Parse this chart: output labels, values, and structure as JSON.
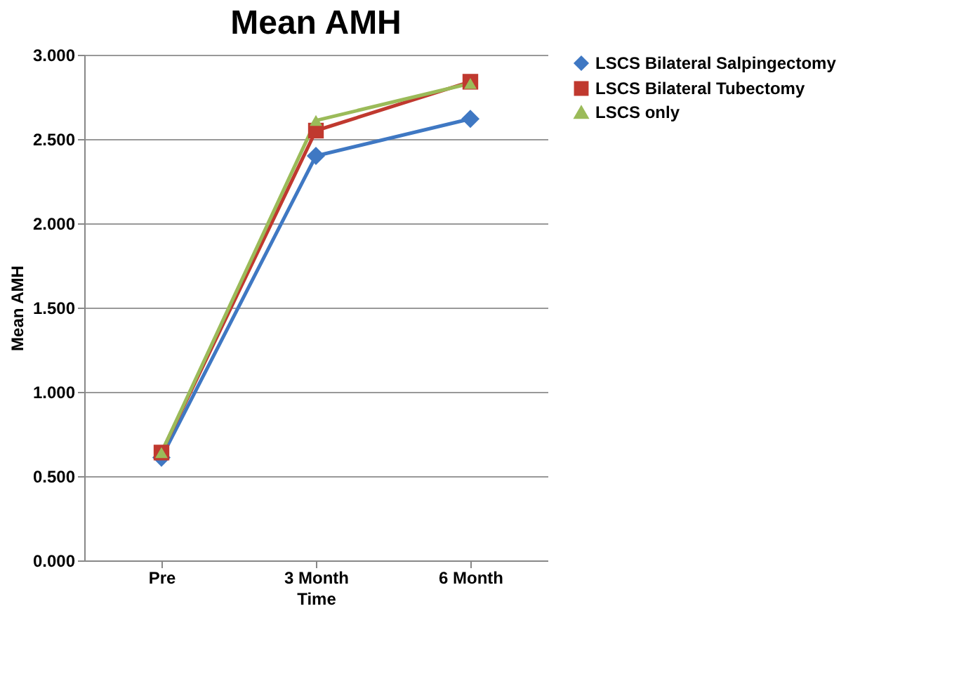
{
  "chart_data": {
    "type": "line",
    "title": "Mean AMH",
    "xlabel": "Time",
    "ylabel": "Mean AMH",
    "categories": [
      "Pre",
      "3 Month",
      "6 Month"
    ],
    "series": [
      {
        "name": "LSCS Bilateral Salpingectomy",
        "color": "#3f78c3",
        "marker": "diamond",
        "values": [
          0.61,
          2.4,
          2.62
        ]
      },
      {
        "name": "LSCS Bilateral Tubectomy",
        "color": "#c0392f",
        "marker": "square",
        "values": [
          0.64,
          2.55,
          2.84
        ]
      },
      {
        "name": "LSCS only",
        "color": "#9bbb59",
        "marker": "triangle",
        "values": [
          0.64,
          2.61,
          2.83
        ]
      }
    ],
    "ylim": [
      0,
      3
    ],
    "yticks": [
      {
        "value": 0,
        "label": "0.000"
      },
      {
        "value": 0.5,
        "label": "0.500"
      },
      {
        "value": 1,
        "label": "1.000"
      },
      {
        "value": 1.5,
        "label": "1.500"
      },
      {
        "value": 2,
        "label": "2.000"
      },
      {
        "value": 2.5,
        "label": "2.500"
      },
      {
        "value": 3,
        "label": "3.000"
      }
    ],
    "grid": "y",
    "legend": "right",
    "line_style": "solid"
  }
}
